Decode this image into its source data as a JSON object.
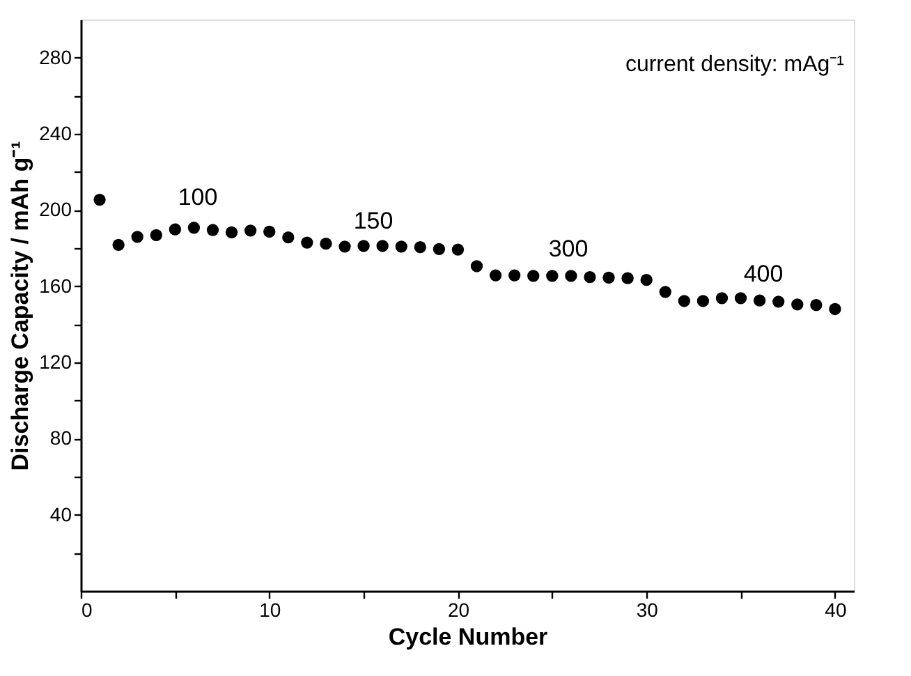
{
  "chart_data": {
    "type": "scatter",
    "xlabel": "Cycle Number",
    "ylabel": "Discharge Capacity / mAh g⁻¹",
    "x": [
      1,
      2,
      3,
      4,
      5,
      6,
      7,
      8,
      9,
      10,
      11,
      12,
      13,
      14,
      15,
      16,
      17,
      18,
      19,
      20,
      21,
      22,
      23,
      24,
      25,
      26,
      27,
      28,
      29,
      30,
      31,
      32,
      33,
      34,
      35,
      36,
      37,
      38,
      39,
      40
    ],
    "series": [
      {
        "color": "#000000",
        "values": [
          205.4,
          181.7,
          185.9,
          186.8,
          189.8,
          190.7,
          189.5,
          188.3,
          189.2,
          188.6,
          185.6,
          182.9,
          182.3,
          180.8,
          181.1,
          181.1,
          180.8,
          180.5,
          179.5,
          179.2,
          170.5,
          165.7,
          165.7,
          165.4,
          165.4,
          165.4,
          164.8,
          164.5,
          164.2,
          163.3,
          157.0,
          152.2,
          152.2,
          153.7,
          153.7,
          152.5,
          151.9,
          150.4,
          150.1,
          148.0
        ]
      }
    ],
    "marker": "circle",
    "xlim": [
      0,
      41
    ],
    "ylim": [
      0,
      300
    ],
    "xticks": [
      0,
      {
        "value": 5,
        "label": null
      },
      10,
      {
        "value": 15,
        "label": null
      },
      20,
      {
        "value": 25,
        "label": null
      },
      30,
      {
        "value": 35,
        "label": null
      },
      40
    ],
    "yticks": [
      {
        "value": 20,
        "label": null
      },
      40,
      {
        "value": 60,
        "label": null
      },
      80,
      {
        "value": 100,
        "label": null
      },
      120,
      {
        "value": 140,
        "label": null
      },
      160,
      {
        "value": 180,
        "label": null
      },
      200,
      {
        "value": 220,
        "label": null
      },
      240,
      {
        "value": 260,
        "label": null
      },
      280
    ],
    "grid": false,
    "annotations": [
      "current density: mAg⁻¹",
      "100",
      "150",
      "300",
      "400"
    ]
  }
}
